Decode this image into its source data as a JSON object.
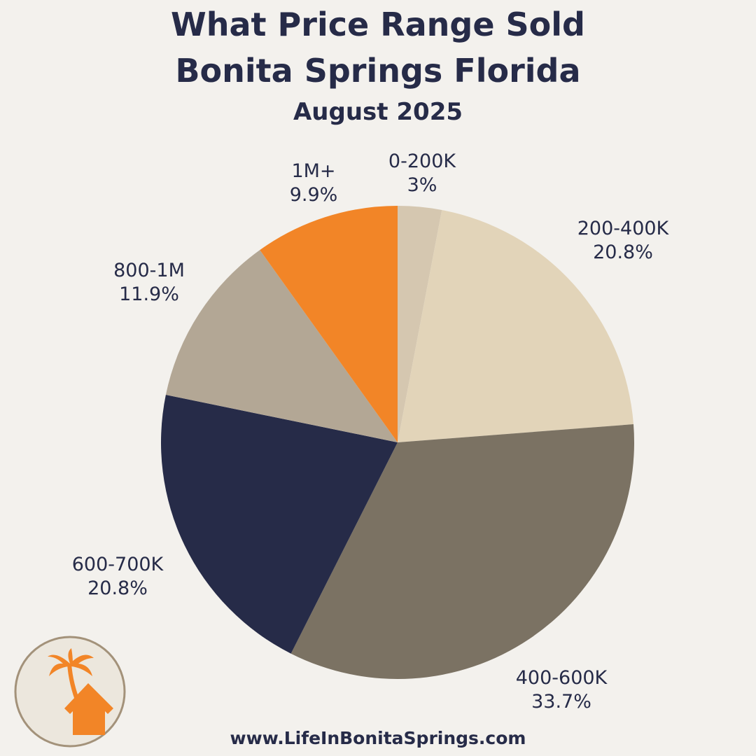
{
  "header": {
    "title_line1": "What Price Range Sold",
    "title_line2": "Bonita Springs Florida",
    "subtitle": "August 2025"
  },
  "footer": {
    "url": "www.LifeInBonitaSprings.com"
  },
  "logo": {
    "icon": "palm-tree-house-icon",
    "color": "#f28527",
    "ring_color": "#a3927a"
  },
  "chart_data": {
    "type": "pie",
    "title": "What Price Range Sold Bonita Springs Florida August 2025",
    "categories": [
      "0-200K",
      "200-400K",
      "400-600K",
      "600-700K",
      "800-1M",
      "1M+"
    ],
    "values": [
      3,
      20.8,
      33.7,
      20.8,
      11.9,
      9.9
    ],
    "labels": [
      "3%",
      "20.8%",
      "33.7%",
      "20.8%",
      "11.9%",
      "9.9%"
    ],
    "colors": [
      "#d5c7b0",
      "#e2d4b9",
      "#7b7263",
      "#262b48",
      "#b3a795",
      "#f28527"
    ],
    "start_angle": "12 o'clock, clockwise",
    "legend": "none (direct labels)"
  },
  "labels": [
    {
      "name": "0-200K",
      "pct": "3%"
    },
    {
      "name": "200-400K",
      "pct": "20.8%"
    },
    {
      "name": "400-600K",
      "pct": "33.7%"
    },
    {
      "name": "600-700K",
      "pct": "20.8%"
    },
    {
      "name": "800-1M",
      "pct": "11.9%"
    },
    {
      "name": "1M+",
      "pct": "9.9%"
    }
  ]
}
